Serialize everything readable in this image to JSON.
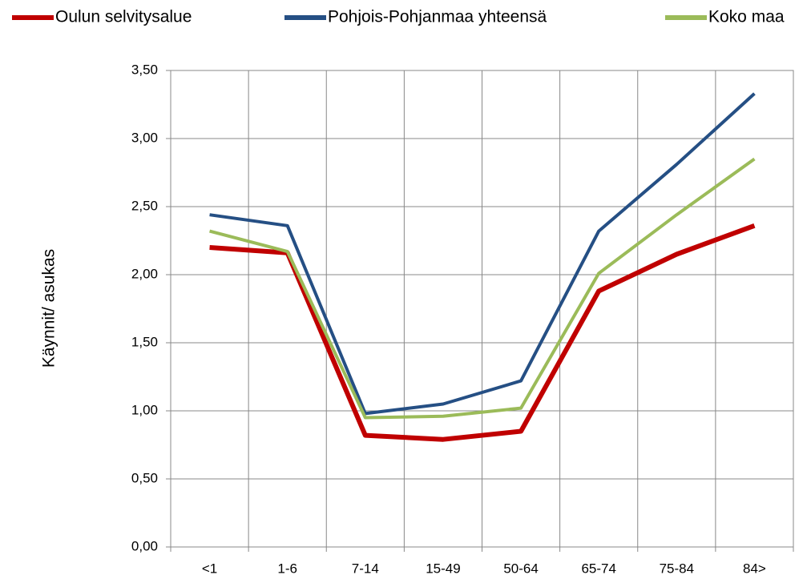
{
  "chart_data": {
    "type": "line",
    "ylabel": "Käynnit/ asukas",
    "categories": [
      "<1",
      "1-6",
      "7-14",
      "15-49",
      "50-64",
      "65-74",
      "75-84",
      "84>"
    ],
    "series": [
      {
        "name": "Oulun selvitysalue",
        "color": "#c00000",
        "values": [
          2.2,
          2.16,
          0.82,
          0.79,
          0.85,
          1.88,
          2.15,
          2.36
        ]
      },
      {
        "name": "Pohjois-Pohjanmaa yhteensä",
        "color": "#254f84",
        "values": [
          2.44,
          2.36,
          0.98,
          1.05,
          1.22,
          2.32,
          2.81,
          3.33
        ]
      },
      {
        "name": "Koko maa",
        "color": "#9bbb59",
        "values": [
          2.32,
          2.17,
          0.95,
          0.96,
          1.02,
          2.01,
          2.44,
          2.85
        ]
      }
    ],
    "ylim": [
      0,
      3.5
    ],
    "yticks": [
      {
        "value": 0,
        "label": "0,00"
      },
      {
        "value": 0.5,
        "label": "0,50"
      },
      {
        "value": 1,
        "label": "1,00"
      },
      {
        "value": 1.5,
        "label": "1,50"
      },
      {
        "value": 2,
        "label": "2,00"
      },
      {
        "value": 2.5,
        "label": "2,50"
      },
      {
        "value": 3,
        "label": "3,00"
      },
      {
        "value": 3.5,
        "label": "3,50"
      }
    ],
    "grid": true,
    "legend": "top"
  }
}
